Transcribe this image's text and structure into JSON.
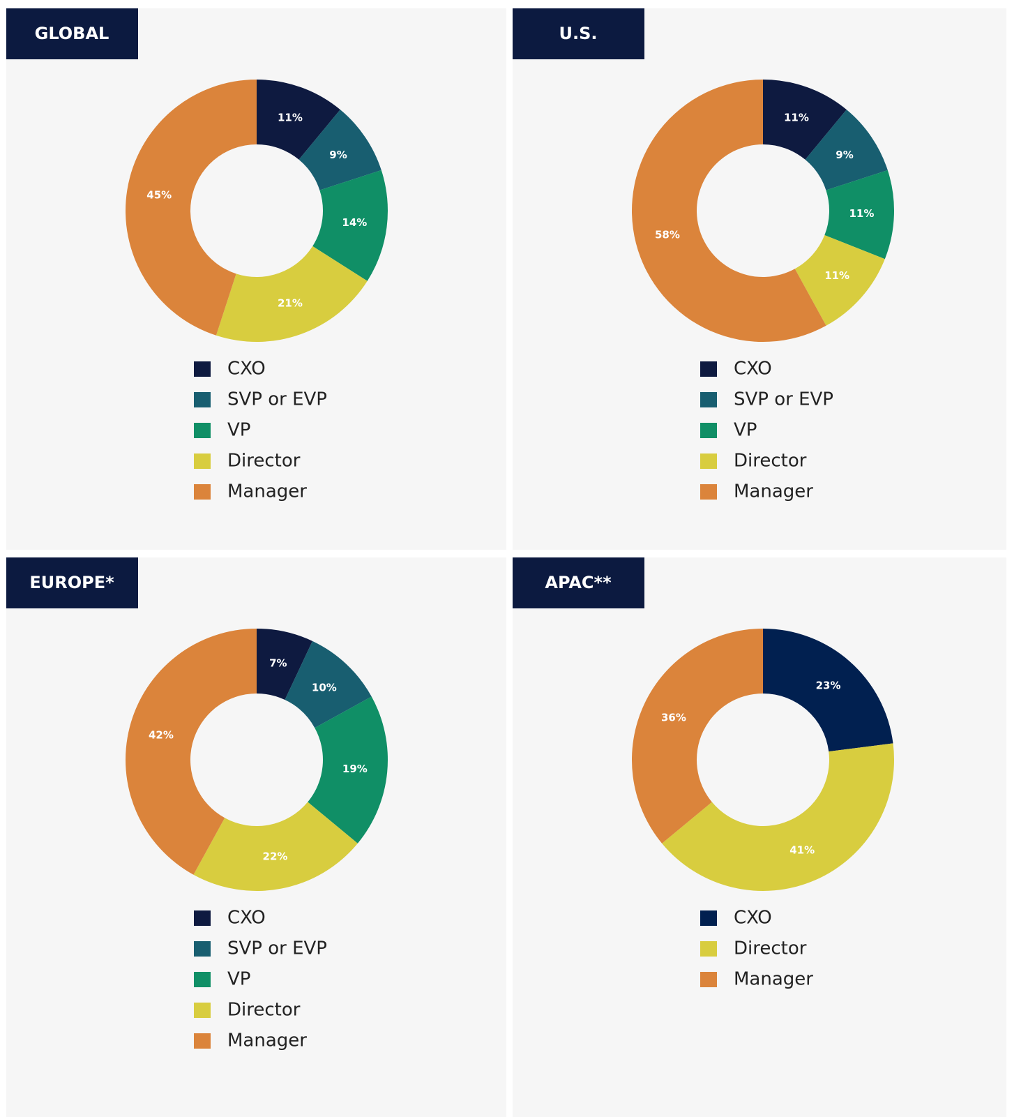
{
  "chart_data": [
    {
      "type": "donut",
      "title": "GLOBAL",
      "categories": [
        "CXO",
        "SVP or EVP",
        "VP",
        "Director",
        "Manager"
      ],
      "values": [
        11,
        9,
        14,
        21,
        45
      ],
      "value_labels": [
        "11%",
        "9%",
        "14%",
        "21%",
        "45%"
      ],
      "colors": [
        "#0e1a40",
        "#185e70",
        "#108f66",
        "#d8cd3f",
        "#db843b"
      ]
    },
    {
      "type": "donut",
      "title": "U.S.",
      "categories": [
        "CXO",
        "SVP or EVP",
        "VP",
        "Director",
        "Manager"
      ],
      "values": [
        11,
        9,
        11,
        11,
        58
      ],
      "value_labels": [
        "11%",
        "9%",
        "11%",
        "11%",
        "58%"
      ],
      "colors": [
        "#0e1a40",
        "#185e70",
        "#108f66",
        "#d8cd3f",
        "#db843b"
      ]
    },
    {
      "type": "donut",
      "title": "EUROPE*",
      "categories": [
        "CXO",
        "SVP or EVP",
        "VP",
        "Director",
        "Manager"
      ],
      "values": [
        7,
        10,
        19,
        22,
        42
      ],
      "value_labels": [
        "7%",
        "10%",
        "19%",
        "22%",
        "42%"
      ],
      "colors": [
        "#0e1a40",
        "#185e70",
        "#108f66",
        "#d8cd3f",
        "#db843b"
      ]
    },
    {
      "type": "donut",
      "title": "APAC**",
      "categories": [
        "CXO",
        "Director",
        "Manager"
      ],
      "values": [
        23,
        41,
        36
      ],
      "value_labels": [
        "23%",
        "41%",
        "36%"
      ],
      "colors": [
        "#012050",
        "#d8cd3f",
        "#db843b"
      ]
    }
  ]
}
